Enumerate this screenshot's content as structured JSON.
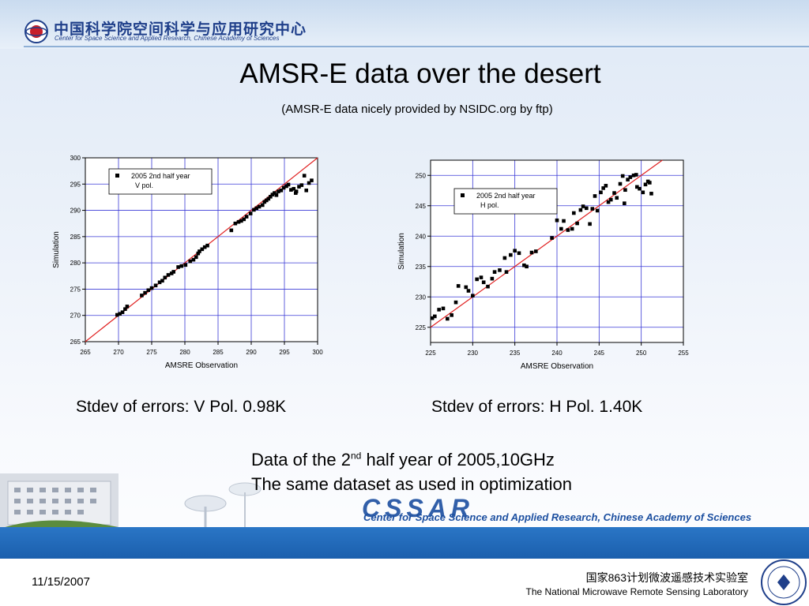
{
  "header": {
    "org_cn": "中国科学院空间科学与应用研究中心",
    "org_en": "Center for Space Science and Applied Research, Chinese Academy of Sciences"
  },
  "title": "AMSR-E data over the desert",
  "subtitle": "(AMSR-E data nicely provided by NSIDC.org by ftp)",
  "captions": {
    "v": "Stdev of errors:  V Pol. 0.98K",
    "h": "Stdev of errors: H Pol. 1.40K"
  },
  "notes": {
    "line1_pre": "Data of the 2",
    "line1_sup": "nd",
    "line1_post": " half year of 2005,10GHz",
    "line2": "The same dataset as used in optimization"
  },
  "banner": {
    "logo_text": "CSSAR",
    "text": "Center for Space Science and Applied Research, Chinese Academy of Sciences"
  },
  "footer": {
    "date": "11/15/2007",
    "lab_cn": "国家863计划微波遥感技术实验室",
    "lab_en": "The National Microwave Remote Sensing Laboratory"
  },
  "colors": {
    "title_blue": "#1f3f8a",
    "grid": "#3a3ad6",
    "fit_line": "#e02020",
    "marker": "#000000",
    "band_blue": "#1b5fad"
  },
  "chart_data": [
    {
      "type": "scatter",
      "xlabel": "AMSRE Observation",
      "ylabel": "Simulation",
      "xlim": [
        265,
        300
      ],
      "ylim": [
        265,
        300
      ],
      "xticks": [
        265,
        270,
        275,
        280,
        285,
        290,
        295,
        300
      ],
      "yticks": [
        265,
        270,
        275,
        280,
        285,
        290,
        295,
        300
      ],
      "grid": true,
      "legend_placement": "top-left",
      "legend": [
        "2005 2nd half year",
        "V pol."
      ],
      "reference_line": "y = x",
      "series": [
        {
          "name": "2005 2nd half year V pol.",
          "points": [
            [
              269.8,
              270.1
            ],
            [
              270.2,
              270.3
            ],
            [
              270.6,
              270.6
            ],
            [
              271.0,
              271.2
            ],
            [
              271.3,
              271.7
            ],
            [
              273.5,
              273.8
            ],
            [
              274.0,
              274.3
            ],
            [
              274.5,
              274.8
            ],
            [
              275.0,
              275.2
            ],
            [
              275.6,
              275.7
            ],
            [
              276.2,
              276.3
            ],
            [
              276.6,
              276.6
            ],
            [
              277.0,
              277.2
            ],
            [
              277.5,
              277.7
            ],
            [
              278.0,
              278.0
            ],
            [
              278.3,
              278.3
            ],
            [
              279.0,
              279.2
            ],
            [
              279.5,
              279.4
            ],
            [
              280.1,
              279.6
            ],
            [
              280.8,
              280.3
            ],
            [
              281.3,
              280.6
            ],
            [
              281.7,
              281.1
            ],
            [
              282.0,
              281.8
            ],
            [
              282.2,
              282.2
            ],
            [
              282.6,
              282.6
            ],
            [
              283.0,
              283.0
            ],
            [
              283.4,
              283.3
            ],
            [
              287.0,
              286.2
            ],
            [
              287.6,
              287.5
            ],
            [
              288.1,
              287.8
            ],
            [
              288.5,
              288.0
            ],
            [
              288.9,
              288.3
            ],
            [
              289.3,
              288.8
            ],
            [
              289.9,
              289.4
            ],
            [
              290.4,
              290.1
            ],
            [
              290.8,
              290.4
            ],
            [
              291.2,
              290.7
            ],
            [
              291.7,
              291.0
            ],
            [
              292.0,
              291.6
            ],
            [
              292.3,
              291.9
            ],
            [
              292.6,
              292.2
            ],
            [
              292.9,
              292.6
            ],
            [
              293.2,
              293.0
            ],
            [
              293.5,
              293.3
            ],
            [
              293.8,
              292.9
            ],
            [
              294.1,
              293.6
            ],
            [
              294.5,
              293.8
            ],
            [
              294.9,
              294.3
            ],
            [
              295.3,
              294.6
            ],
            [
              295.6,
              294.9
            ],
            [
              296.0,
              293.9
            ],
            [
              296.4,
              294.1
            ],
            [
              296.8,
              293.6
            ],
            [
              297.2,
              294.5
            ],
            [
              297.6,
              294.8
            ],
            [
              298.0,
              296.6
            ],
            [
              298.3,
              293.8
            ],
            [
              298.7,
              295.2
            ],
            [
              296.7,
              293.3
            ],
            [
              299.1,
              295.7
            ]
          ]
        }
      ]
    },
    {
      "type": "scatter",
      "xlabel": "AMSRE Observation",
      "ylabel": "Simulation",
      "xlim": [
        225,
        255
      ],
      "ylim": [
        222.5,
        252.5
      ],
      "xticks": [
        225,
        230,
        235,
        240,
        245,
        250,
        255
      ],
      "yticks": [
        225,
        230,
        235,
        240,
        245,
        250
      ],
      "grid": true,
      "legend_placement": "top-left",
      "legend": [
        "2005 2nd half year",
        "H pol."
      ],
      "reference_line": "y = x",
      "series": [
        {
          "name": "2005 2nd half year H pol.",
          "points": [
            [
              225.2,
              226.5
            ],
            [
              225.5,
              226.8
            ],
            [
              226.0,
              227.9
            ],
            [
              226.5,
              228.1
            ],
            [
              227.0,
              226.4
            ],
            [
              227.5,
              227.0
            ],
            [
              228.0,
              229.1
            ],
            [
              228.3,
              231.8
            ],
            [
              229.2,
              231.6
            ],
            [
              229.5,
              231.0
            ],
            [
              230.0,
              230.2
            ],
            [
              230.5,
              232.9
            ],
            [
              231.0,
              233.2
            ],
            [
              231.3,
              232.4
            ],
            [
              231.8,
              231.7
            ],
            [
              232.3,
              233.0
            ],
            [
              232.6,
              234.1
            ],
            [
              233.2,
              234.4
            ],
            [
              233.8,
              236.4
            ],
            [
              234.0,
              234.1
            ],
            [
              234.5,
              236.9
            ],
            [
              235.0,
              237.6
            ],
            [
              235.5,
              237.2
            ],
            [
              236.1,
              235.2
            ],
            [
              236.4,
              235.0
            ],
            [
              237.0,
              237.3
            ],
            [
              237.5,
              237.5
            ],
            [
              239.4,
              239.7
            ],
            [
              240.0,
              242.6
            ],
            [
              240.5,
              241.2
            ],
            [
              240.8,
              242.5
            ],
            [
              241.3,
              241.0
            ],
            [
              241.8,
              241.2
            ],
            [
              242.0,
              243.8
            ],
            [
              242.4,
              242.1
            ],
            [
              242.8,
              244.3
            ],
            [
              243.1,
              244.9
            ],
            [
              243.5,
              244.6
            ],
            [
              243.9,
              242.0
            ],
            [
              244.2,
              244.5
            ],
            [
              244.5,
              246.6
            ],
            [
              244.8,
              244.2
            ],
            [
              245.2,
              247.2
            ],
            [
              245.5,
              247.9
            ],
            [
              245.8,
              248.3
            ],
            [
              246.1,
              245.6
            ],
            [
              246.4,
              246.0
            ],
            [
              246.8,
              247.1
            ],
            [
              247.1,
              246.3
            ],
            [
              247.5,
              248.6
            ],
            [
              247.8,
              249.9
            ],
            [
              248.1,
              247.6
            ],
            [
              248.4,
              249.3
            ],
            [
              248.7,
              249.7
            ],
            [
              249.1,
              250.0
            ],
            [
              249.5,
              248.1
            ],
            [
              249.8,
              247.8
            ],
            [
              250.2,
              247.2
            ],
            [
              250.5,
              248.5
            ],
            [
              250.8,
              249.0
            ],
            [
              251.2,
              247.0
            ],
            [
              251.0,
              248.8
            ],
            [
              249.4,
              250.1
            ],
            [
              248.0,
              245.4
            ]
          ]
        }
      ]
    }
  ]
}
